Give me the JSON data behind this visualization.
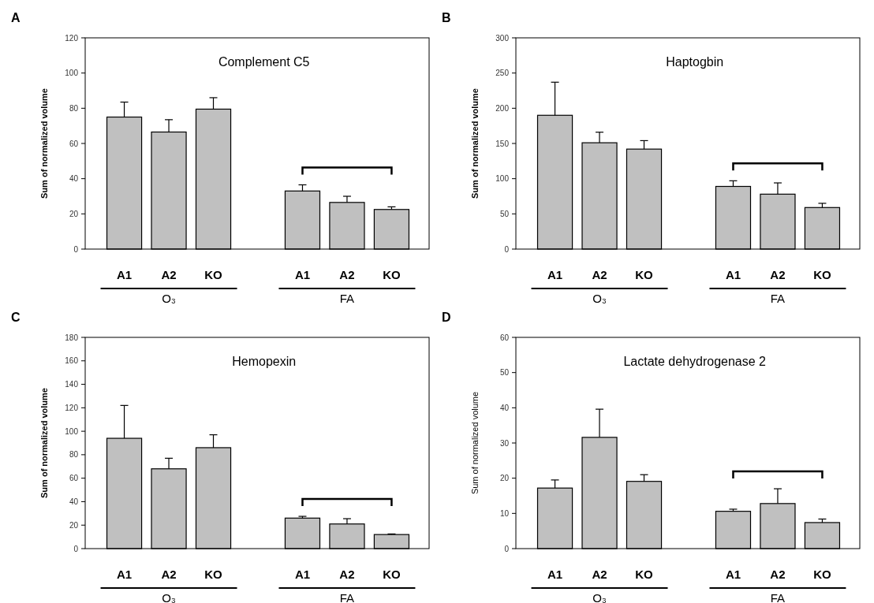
{
  "chart_data": [
    {
      "type": "bar",
      "title": "Complement C5",
      "ylabel": "Sum of normalized volume",
      "categories": [
        "A1",
        "A2",
        "KO",
        "A1",
        "A2",
        "KO"
      ],
      "values": [
        75,
        66.5,
        79.5,
        33,
        26.5,
        22.5
      ],
      "errors": [
        [
          75,
          83.5
        ],
        [
          66.5,
          73.5
        ],
        [
          79.5,
          86
        ],
        [
          33,
          36.5
        ],
        [
          26.5,
          30
        ],
        [
          22.5,
          24
        ]
      ],
      "color": "#c0c0c0",
      "ylim": [
        0,
        120
      ],
      "yticks": [
        0,
        20,
        40,
        60,
        80,
        100,
        120
      ],
      "annotations": [
        "A",
        "O₃",
        "FA"
      ]
    },
    {
      "type": "bar",
      "title": "Haptogbin",
      "ylabel": "Sum of normalized volume",
      "categories": [
        "A1",
        "A2",
        "KO",
        "A1",
        "A2",
        "KO"
      ],
      "values": [
        190,
        151,
        142,
        89,
        78,
        59
      ],
      "errors": [
        [
          190,
          237
        ],
        [
          151,
          166
        ],
        [
          142,
          154
        ],
        [
          89,
          97
        ],
        [
          78,
          94
        ],
        [
          59,
          65
        ]
      ],
      "color": "#c0c0c0",
      "ylim": [
        0,
        300
      ],
      "yticks": [
        0,
        50,
        100,
        150,
        200,
        250,
        300
      ],
      "annotations": [
        "B",
        "O₃",
        "FA"
      ]
    },
    {
      "type": "bar",
      "title": "Hemopexin",
      "ylabel": "Sum of normalized volume",
      "categories": [
        "A1",
        "A2",
        "KO",
        "A1",
        "A2",
        "KO"
      ],
      "values": [
        94,
        68,
        86,
        26,
        21,
        12
      ],
      "errors": [
        [
          94,
          122
        ],
        [
          68,
          77
        ],
        [
          86,
          97
        ],
        [
          26,
          27.5
        ],
        [
          21,
          25.5
        ],
        [
          12,
          12.5
        ]
      ],
      "color": "#c0c0c0",
      "ylim": [
        0,
        180
      ],
      "yticks": [
        0,
        20,
        40,
        60,
        80,
        100,
        120,
        140,
        160,
        180
      ],
      "annotations": [
        "C",
        "O₃",
        "FA"
      ]
    },
    {
      "type": "bar",
      "title": "Lactate dehydrogenase 2",
      "ylabel": "Sum of normalized volume",
      "categories": [
        "A1",
        "A2",
        "KO",
        "A1",
        "A2",
        "KO"
      ],
      "values": [
        17.2,
        31.6,
        19.1,
        10.6,
        12.8,
        7.4
      ],
      "errors": [
        [
          17.2,
          19.5
        ],
        [
          31.6,
          39.6
        ],
        [
          19.1,
          21
        ],
        [
          10.6,
          11.2
        ],
        [
          12.8,
          17
        ],
        [
          7.4,
          8.4
        ]
      ],
      "color": "#c0c0c0",
      "ylim": [
        0,
        60
      ],
      "yticks": [
        0,
        10,
        20,
        30,
        40,
        50,
        60
      ],
      "annotations": [
        "D",
        "O₃",
        "FA"
      ]
    }
  ]
}
